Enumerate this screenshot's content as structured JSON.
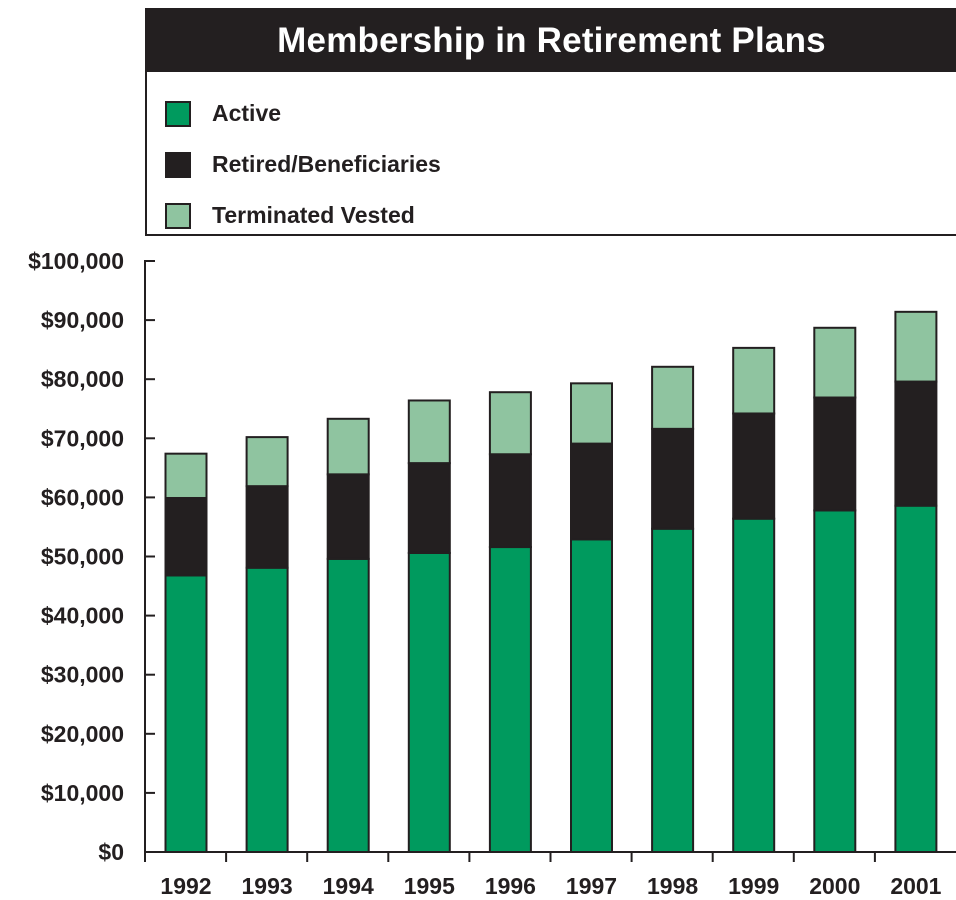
{
  "title": "Membership in Retirement Plans",
  "colors": {
    "active": "#009a5e",
    "retired": "#231f20",
    "terminated": "#8fc4a0",
    "axis": "#231f20"
  },
  "chart_data": {
    "type": "bar",
    "stacked": true,
    "title": "Membership in Retirement Plans",
    "categories": [
      "1992",
      "1993",
      "1994",
      "1995",
      "1996",
      "1997",
      "1998",
      "1999",
      "2000",
      "2001"
    ],
    "series": [
      {
        "name": "Active",
        "values": [
          46800,
          48100,
          49600,
          50600,
          51600,
          52900,
          54700,
          56400,
          57800,
          58600
        ]
      },
      {
        "name": "Retired/Beneficiaries",
        "values": [
          13100,
          13800,
          14300,
          15200,
          15700,
          16200,
          16900,
          17800,
          19100,
          21000
        ]
      },
      {
        "name": "Terminated Vested",
        "values": [
          7500,
          8300,
          9400,
          10600,
          10500,
          10200,
          10500,
          11100,
          11800,
          11800
        ]
      }
    ],
    "yticks": [
      "$0",
      "$10,000",
      "$20,000",
      "$30,000",
      "$40,000",
      "$50,000",
      "$60,000",
      "$70,000",
      "$80,000",
      "$90,000",
      "$100,000"
    ],
    "ylim": [
      0,
      100000
    ],
    "xlabel": "",
    "ylabel": "",
    "legend_position": "top",
    "grid": false
  }
}
